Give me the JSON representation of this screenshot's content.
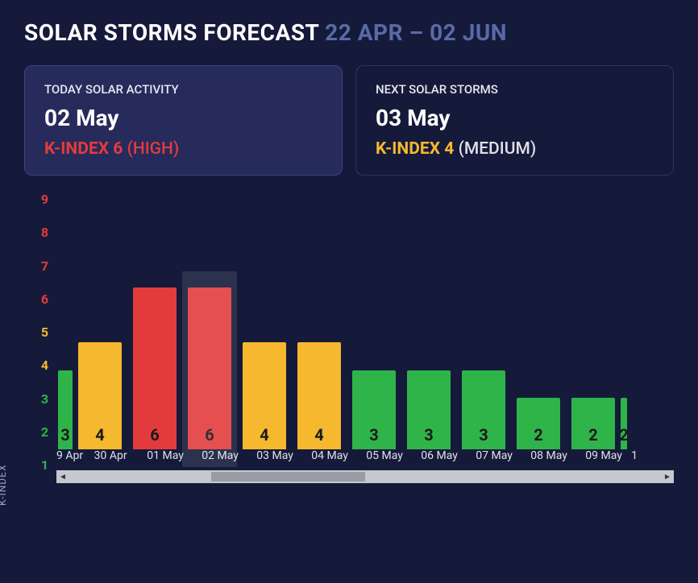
{
  "title": {
    "prefix": "SOLAR STORMS FORECAST",
    "range": "22 APR – 02 JUN"
  },
  "cards": {
    "today": {
      "label": "TODAY SOLAR ACTIVITY",
      "date": "02 May",
      "k_prefix": "K-INDEX",
      "k_value": "6",
      "level": "(HIGH)",
      "k_color": "#e33b3b",
      "highlight": true
    },
    "next": {
      "label": "NEXT SOLAR STORMS",
      "date": "03 May",
      "k_prefix": "K-INDEX",
      "k_value": "4",
      "level": "(MEDIUM)",
      "k_color": "#f5b82e",
      "highlight": false
    }
  },
  "chart": {
    "type": "bar",
    "ylabel": "K-INDEX",
    "ylim": [
      1,
      9
    ],
    "yticks": [
      9,
      8,
      7,
      6,
      5,
      4,
      3,
      2,
      1
    ],
    "ytick_colors": [
      "#e33b3b",
      "#e33b3b",
      "#e33b3b",
      "#e33b3b",
      "#f5b82e",
      "#f5b82e",
      "#2fb44a",
      "#2fb44a",
      "#2fb44a"
    ],
    "background_color": "#151a3a",
    "highlight_index": 3,
    "bar_label_color": "#1a1a1a",
    "bars": [
      {
        "label": "9 Apr",
        "value": 3,
        "color": "#2fb44a",
        "trunc": "left"
      },
      {
        "label": "30 Apr",
        "value": 4,
        "color": "#f5b82e"
      },
      {
        "label": "01 May",
        "value": 6,
        "color": "#e33b3b"
      },
      {
        "label": "02 May",
        "value": 6,
        "color": "#e33b3b"
      },
      {
        "label": "03 May",
        "value": 4,
        "color": "#f5b82e"
      },
      {
        "label": "04 May",
        "value": 4,
        "color": "#f5b82e"
      },
      {
        "label": "05 May",
        "value": 3,
        "color": "#2fb44a"
      },
      {
        "label": "06 May",
        "value": 3,
        "color": "#2fb44a"
      },
      {
        "label": "07 May",
        "value": 3,
        "color": "#2fb44a"
      },
      {
        "label": "08 May",
        "value": 2,
        "color": "#2fb44a"
      },
      {
        "label": "09 May",
        "value": 2,
        "color": "#2fb44a"
      },
      {
        "label": "1",
        "value": 2,
        "color": "#2fb44a",
        "trunc": "right"
      }
    ],
    "scrollbar": {
      "thumb_left_pct": 25,
      "thumb_width_pct": 25
    }
  }
}
